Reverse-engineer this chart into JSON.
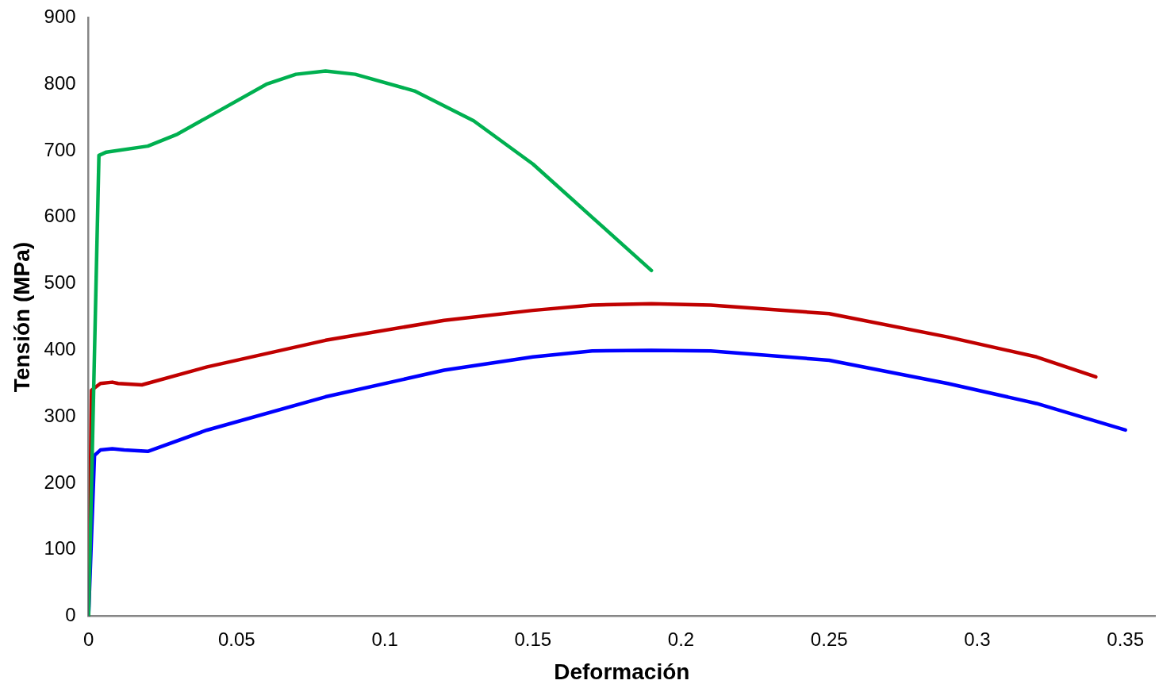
{
  "chart_data": {
    "type": "line",
    "xlabel": "Deformación",
    "ylabel": "Tensión (MPa)",
    "xlim": [
      0,
      0.36
    ],
    "xticks": [
      0,
      0.05,
      0.1,
      0.15,
      0.2,
      0.25,
      0.3,
      0.35
    ],
    "ylim": [
      0,
      900
    ],
    "yticks": [
      0,
      100,
      200,
      300,
      400,
      500,
      600,
      700,
      800,
      900
    ],
    "grid": false,
    "legend": false,
    "marker": "none",
    "line_style": "solid",
    "series": [
      {
        "color": "#00b050",
        "x": [
          0,
          0.0035,
          0.006,
          0.02,
          0.03,
          0.04,
          0.06,
          0.07,
          0.08,
          0.09,
          0.11,
          0.13,
          0.15,
          0.17,
          0.19
        ],
        "values": [
          0,
          693,
          698,
          707,
          725,
          750,
          800,
          815,
          820,
          815,
          790,
          745,
          680,
          600,
          520
        ]
      },
      {
        "color": "#c00000",
        "x": [
          0,
          0.001,
          0.004,
          0.008,
          0.01,
          0.018,
          0.04,
          0.08,
          0.12,
          0.15,
          0.17,
          0.19,
          0.21,
          0.25,
          0.29,
          0.32,
          0.34
        ],
        "values": [
          0,
          340,
          350,
          352,
          350,
          348,
          375,
          415,
          445,
          460,
          468,
          470,
          468,
          455,
          420,
          390,
          360
        ]
      },
      {
        "color": "#0000ff",
        "x": [
          0,
          0.002,
          0.004,
          0.008,
          0.012,
          0.02,
          0.04,
          0.08,
          0.12,
          0.15,
          0.17,
          0.19,
          0.21,
          0.25,
          0.29,
          0.32,
          0.35
        ],
        "values": [
          0,
          242,
          250,
          252,
          250,
          248,
          280,
          330,
          370,
          390,
          399,
          400,
          399,
          385,
          350,
          320,
          280
        ]
      }
    ]
  }
}
